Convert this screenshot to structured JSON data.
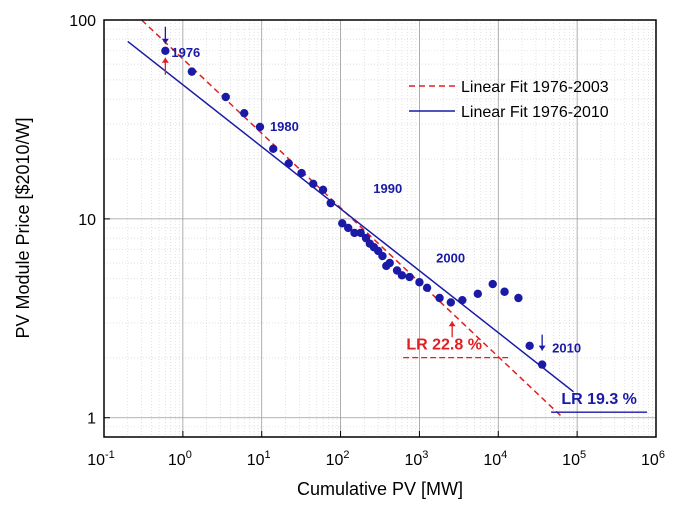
{
  "chart_data": {
    "type": "scatter",
    "title": "",
    "xlabel": "Cumulative PV [MW]",
    "ylabel": "PV Module Price [$2010/W]",
    "xscale": "log",
    "yscale": "log",
    "xlim": [
      0.1,
      1000000
    ],
    "ylim": [
      0.8,
      100
    ],
    "grid": true,
    "legend_position": "top-right",
    "x_ticks": [
      {
        "base": "10",
        "exp": "-1",
        "value": 0.1
      },
      {
        "base": "10",
        "exp": "0",
        "value": 1
      },
      {
        "base": "10",
        "exp": "1",
        "value": 10
      },
      {
        "base": "10",
        "exp": "2",
        "value": 100
      },
      {
        "base": "10",
        "exp": "3",
        "value": 1000
      },
      {
        "base": "10",
        "exp": "4",
        "value": 10000
      },
      {
        "base": "10",
        "exp": "5",
        "value": 100000
      },
      {
        "base": "10",
        "exp": "6",
        "value": 1000000
      }
    ],
    "y_ticks": [
      {
        "label": "100",
        "value": 100
      },
      {
        "label": "10",
        "value": 10
      },
      {
        "label": "1",
        "value": 1
      }
    ],
    "points": {
      "color": "#1a1aa6",
      "x": [
        0.6,
        1.3,
        3.5,
        6,
        9.5,
        14,
        22,
        32,
        45,
        60,
        75,
        105,
        125,
        150,
        180,
        210,
        235,
        265,
        300,
        340,
        380,
        420,
        520,
        600,
        750,
        1000,
        1250,
        1800,
        2500,
        3500,
        5500,
        8500,
        12000,
        18000,
        25000,
        36000
      ],
      "y": [
        70,
        55,
        41,
        34,
        29,
        22.5,
        19,
        17,
        15,
        14,
        12,
        9.5,
        9,
        8.5,
        8.5,
        8,
        7.5,
        7.2,
        6.9,
        6.5,
        5.8,
        6,
        5.5,
        5.2,
        5.1,
        4.8,
        4.5,
        4,
        3.8,
        3.9,
        4.2,
        4.7,
        4.3,
        4,
        2.3,
        1.85
      ]
    },
    "series": [
      {
        "name": "Linear Fit 1976-2003",
        "style": "dashed",
        "color": "#e02020",
        "x": [
          0.3,
          66000
        ],
        "y": [
          100,
          1
        ]
      },
      {
        "name": "Linear Fit 1976-2010",
        "style": "solid",
        "color": "#1a1aa6",
        "x": [
          0.2,
          90000
        ],
        "y": [
          78,
          1.35
        ]
      }
    ],
    "annotations": {
      "years": [
        {
          "text": "1976",
          "x": 0.6,
          "y": 70
        },
        {
          "text": "1980",
          "x": 9.5,
          "y": 29
        },
        {
          "text": "1990",
          "x": 260,
          "y": 12
        },
        {
          "text": "2000",
          "x": 2600,
          "y": 3.8
        },
        {
          "text": "2010",
          "x": 36000,
          "y": 1.85
        }
      ],
      "lr_red": "LR 22.8 %",
      "lr_blue": "LR 19.3 %",
      "red_color": "#e02020",
      "blue_color": "#1a1aa6"
    }
  }
}
